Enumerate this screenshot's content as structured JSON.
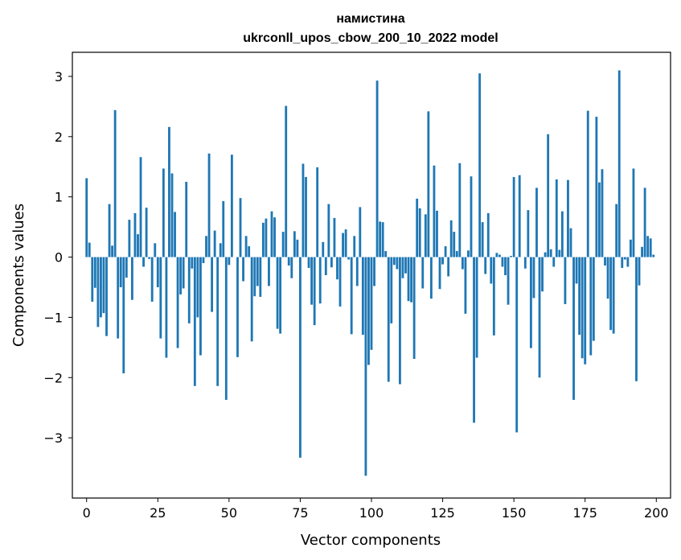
{
  "chart_data": {
    "type": "bar",
    "title_line1": "намистина",
    "title_line2": "ukrconll_upos_cbow_200_10_2022 model",
    "xlabel": "Vector components",
    "ylabel": "Components values",
    "xlim": [
      -5,
      205
    ],
    "ylim": [
      -4.0,
      3.4
    ],
    "xticks": [
      0,
      25,
      50,
      75,
      100,
      125,
      150,
      175,
      200
    ],
    "xtick_labels": [
      "0",
      "25",
      "50",
      "75",
      "100",
      "125",
      "150",
      "175",
      "200"
    ],
    "yticks": [
      -3,
      -2,
      -1,
      0,
      1,
      2,
      3
    ],
    "ytick_labels": [
      "−3",
      "−2",
      "−1",
      "0",
      "1",
      "2",
      "3"
    ],
    "bar_color": "#1f77b4",
    "series": [
      {
        "values": [
          1.31,
          0.24,
          -0.74,
          -0.51,
          -1.16,
          -1.0,
          -0.93,
          -1.31,
          0.88,
          0.19,
          2.44,
          -1.35,
          -0.5,
          -1.93,
          -0.34,
          0.62,
          -0.71,
          0.73,
          0.38,
          1.66,
          -0.16,
          0.82,
          -0.03,
          -0.74,
          0.23,
          -0.5,
          -1.35,
          1.47,
          -1.67,
          2.16,
          1.39,
          0.75,
          -1.51,
          -0.62,
          -0.52,
          1.25,
          -1.1,
          -0.19,
          -2.14,
          -1.0,
          -1.63,
          -0.1,
          0.35,
          1.72,
          -0.91,
          0.44,
          -2.14,
          0.23,
          0.93,
          -2.37,
          -0.13,
          1.7,
          0.0,
          -1.66,
          0.98,
          -0.4,
          0.35,
          0.18,
          -1.4,
          -0.65,
          -0.48,
          -0.66,
          0.57,
          0.64,
          -0.48,
          0.76,
          0.66,
          -1.19,
          -1.27,
          0.42,
          2.51,
          -0.14,
          -0.35,
          0.43,
          0.29,
          -3.33,
          1.55,
          1.33,
          -0.18,
          -0.79,
          -1.13,
          1.49,
          -0.77,
          0.25,
          -0.3,
          0.88,
          -0.17,
          0.65,
          -0.37,
          -0.82,
          0.4,
          0.46,
          -0.04,
          -1.28,
          0.35,
          -0.48,
          0.83,
          -1.29,
          -3.63,
          -1.79,
          -1.54,
          -0.48,
          2.93,
          0.59,
          0.58,
          0.1,
          -2.07,
          -1.1,
          -0.13,
          -0.2,
          -2.11,
          -0.35,
          -0.27,
          -0.73,
          -0.75,
          -1.69,
          0.97,
          0.81,
          -0.52,
          0.71,
          2.42,
          -0.69,
          1.52,
          0.77,
          -0.53,
          -0.12,
          0.18,
          -0.32,
          0.61,
          0.42,
          0.1,
          1.56,
          -0.2,
          -0.94,
          0.11,
          1.34,
          -2.75,
          -1.67,
          3.05,
          0.58,
          -0.28,
          0.73,
          -0.44,
          -1.3,
          0.07,
          0.04,
          -0.16,
          -0.3,
          -0.79,
          0.02,
          1.33,
          -2.91,
          1.36,
          0.0,
          -0.19,
          0.78,
          -1.51,
          -0.68,
          1.15,
          -2.0,
          -0.57,
          0.08,
          2.04,
          0.13,
          -0.16,
          1.29,
          0.12,
          0.76,
          -0.78,
          1.28,
          0.48,
          -2.37,
          -0.44,
          -1.29,
          -1.68,
          -1.78,
          2.43,
          -1.63,
          -1.39,
          2.33,
          1.24,
          1.46,
          -0.14,
          -0.69,
          -1.21,
          -1.27,
          0.88,
          3.1,
          -0.18,
          -0.04,
          -0.16,
          0.29,
          1.47,
          -2.06,
          -0.47,
          0.17,
          1.15,
          0.35,
          0.31,
          0.04
        ]
      }
    ]
  }
}
